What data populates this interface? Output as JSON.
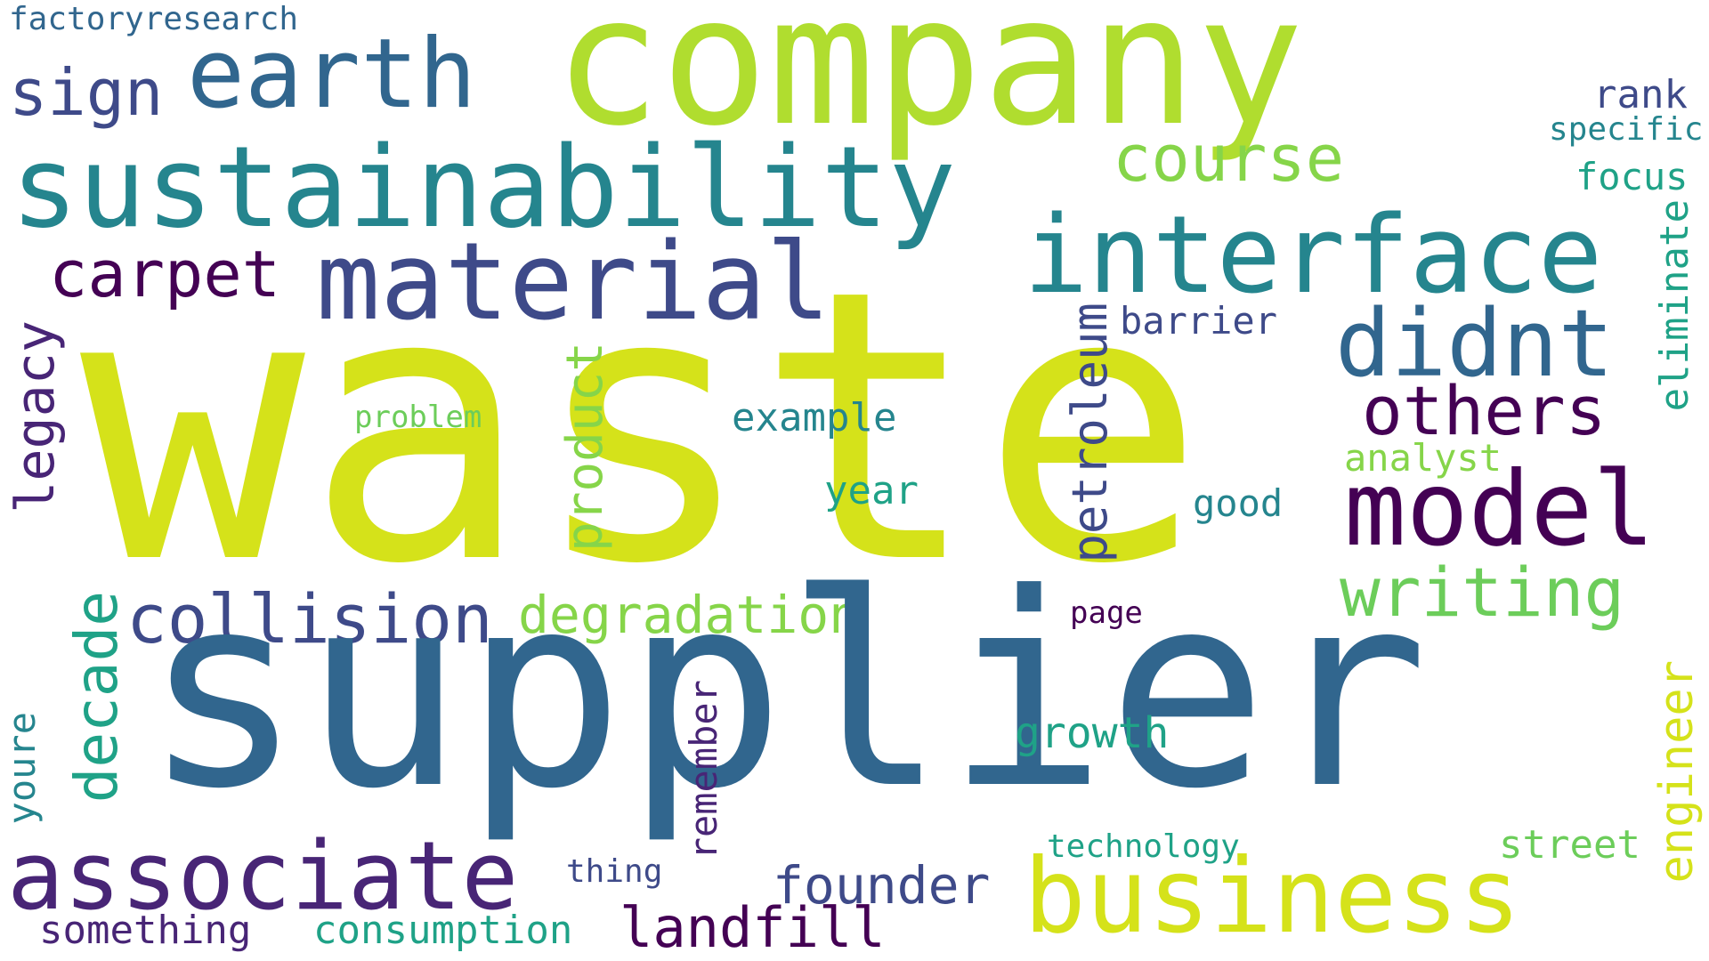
{
  "words": {
    "waste": "waste",
    "supplier": "supplier",
    "company": "company",
    "sustainability": "sustainability",
    "earth": "earth",
    "interface": "interface",
    "material": "material",
    "model": "model",
    "business": "business",
    "associate": "associate",
    "didnt": "didnt",
    "others": "others",
    "writing": "writing",
    "collision": "collision",
    "carpet": "carpet",
    "course": "course",
    "degradation": "degradation",
    "decade": "decade",
    "product": "product",
    "petroleum": "petroleum",
    "landfill": "landfill",
    "founder": "founder",
    "legacy": "legacy",
    "sign": "sign",
    "engineer": "engineer",
    "factoryresearch": "factoryresearch",
    "rank": "rank",
    "specific": "specific",
    "focus": "focus",
    "eliminate": "eliminate",
    "barrier": "barrier",
    "example": "example",
    "problem": "problem",
    "analyst": "analyst",
    "year": "year",
    "good": "good",
    "page": "page",
    "growth": "growth",
    "remember": "remember",
    "youre": "youre",
    "technology": "technology",
    "street": "street",
    "thing": "thing",
    "something": "something",
    "consumption": "consumption"
  },
  "colors": {
    "yellow": "#d5e21a",
    "lime": "#b0dd2f",
    "lightgreen": "#6ccd5a",
    "green": "#86d549",
    "teal": "#25858e",
    "tealgreen": "#1fa287",
    "blue": "#31668e",
    "indigo": "#3e4a89",
    "purple": "#440154",
    "violet": "#482576"
  }
}
